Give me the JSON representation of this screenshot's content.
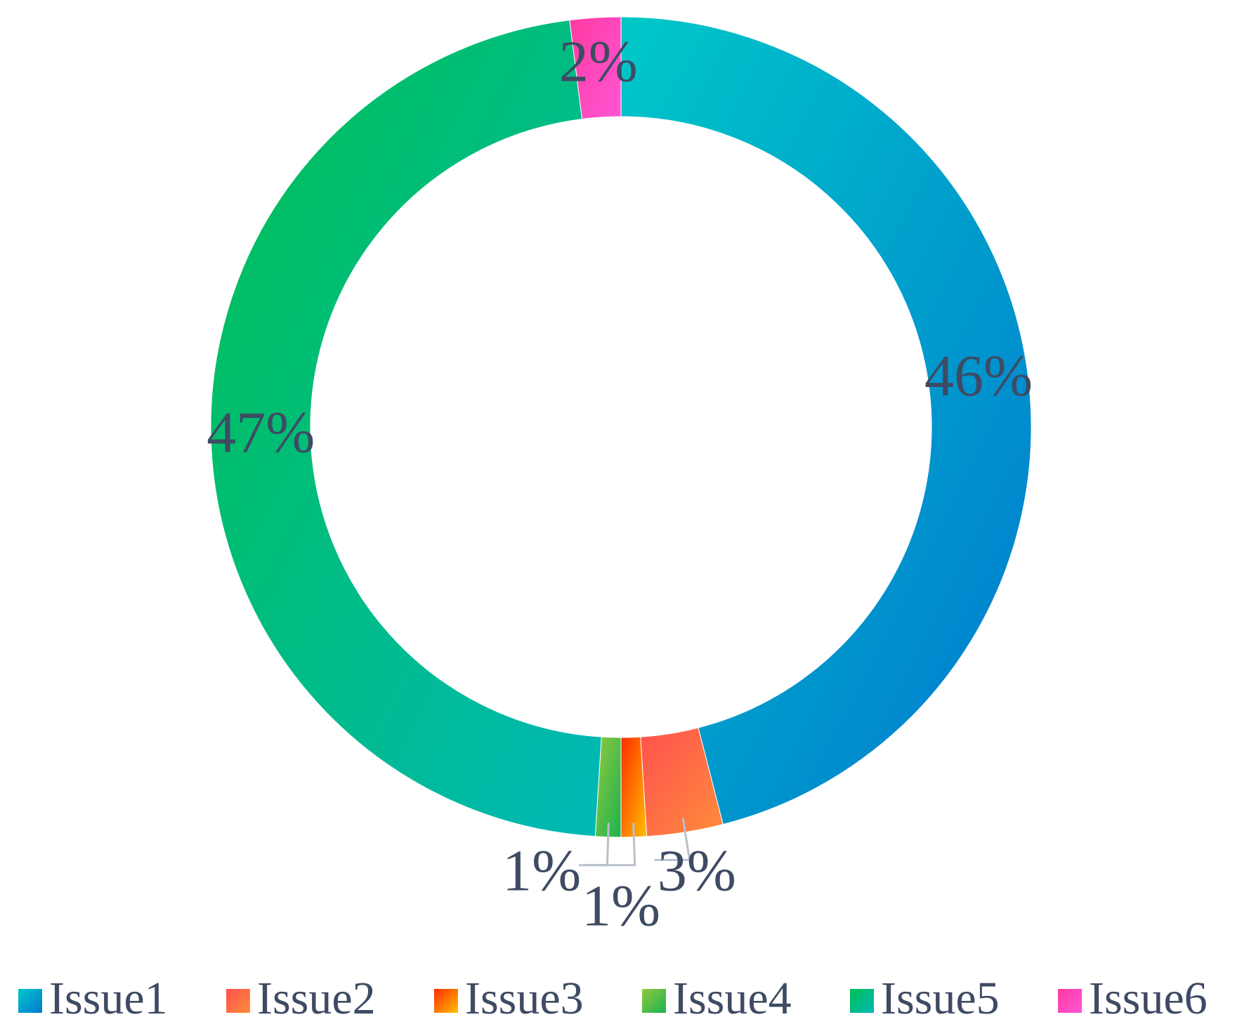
{
  "chart_data": {
    "type": "pie",
    "donut": true,
    "title": "",
    "categories": [
      "Issue1",
      "Issue2",
      "Issue3",
      "Issue4",
      "Issue5",
      "Issue6"
    ],
    "values": [
      46,
      3,
      1,
      1,
      47,
      2
    ],
    "data_labels": [
      "46%",
      "3%",
      "1%",
      "1%",
      "47%",
      "2%"
    ],
    "colors": [
      [
        "#00c8c8",
        "#0078d0"
      ],
      [
        "#ff5050",
        "#ff8c3a"
      ],
      [
        "#ff2a00",
        "#ffc000"
      ],
      [
        "#92c83e",
        "#1bb34f"
      ],
      [
        "#00c050",
        "#00b8b8"
      ],
      [
        "#ff3aa0",
        "#ff56d6"
      ]
    ],
    "legend": {
      "position": "bottom",
      "items": [
        "Issue1",
        "Issue2",
        "Issue3",
        "Issue4",
        "Issue5",
        "Issue6"
      ]
    },
    "label_color": "#3e4b63"
  }
}
